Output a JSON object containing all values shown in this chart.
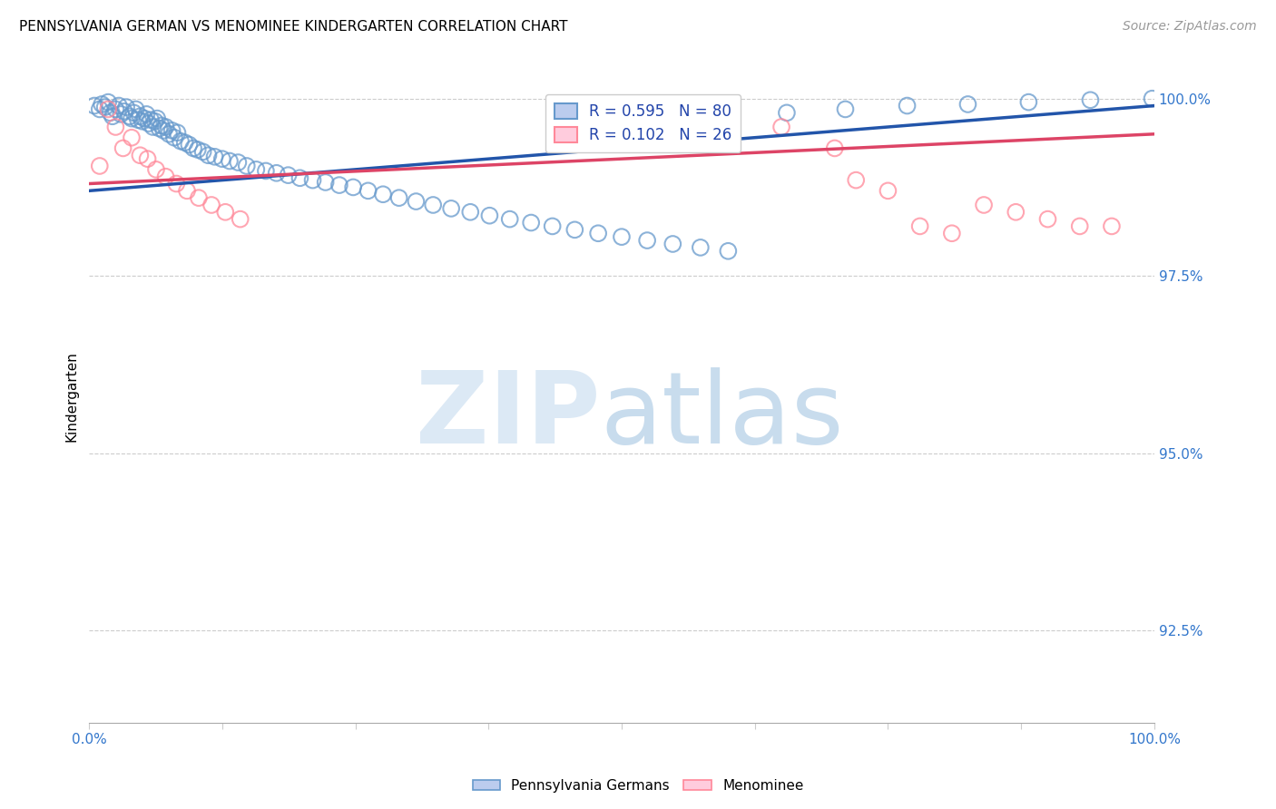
{
  "title": "PENNSYLVANIA GERMAN VS MENOMINEE KINDERGARTEN CORRELATION CHART",
  "source": "Source: ZipAtlas.com",
  "ylabel": "Kindergarten",
  "ytick_labels": [
    "100.0%",
    "97.5%",
    "95.0%",
    "92.5%"
  ],
  "ytick_values": [
    1.0,
    0.975,
    0.95,
    0.925
  ],
  "xlim": [
    0.0,
    1.0
  ],
  "ylim": [
    0.912,
    1.004
  ],
  "legend_blue": "R = 0.595   N = 80",
  "legend_pink": "R = 0.102   N = 26",
  "blue_color": "#6699CC",
  "pink_color": "#FF8899",
  "trendline_blue": "#2255AA",
  "trendline_pink": "#DD4466",
  "blue_scatter_x": [
    0.005,
    0.01,
    0.012,
    0.015,
    0.018,
    0.02,
    0.022,
    0.025,
    0.028,
    0.03,
    0.033,
    0.035,
    0.038,
    0.04,
    0.042,
    0.044,
    0.046,
    0.048,
    0.05,
    0.052,
    0.054,
    0.056,
    0.058,
    0.06,
    0.062,
    0.064,
    0.066,
    0.068,
    0.07,
    0.072,
    0.075,
    0.078,
    0.08,
    0.083,
    0.086,
    0.09,
    0.094,
    0.098,
    0.102,
    0.107,
    0.112,
    0.118,
    0.125,
    0.132,
    0.14,
    0.148,
    0.157,
    0.166,
    0.176,
    0.187,
    0.198,
    0.21,
    0.222,
    0.235,
    0.248,
    0.262,
    0.276,
    0.291,
    0.307,
    0.323,
    0.34,
    0.358,
    0.376,
    0.395,
    0.415,
    0.435,
    0.456,
    0.478,
    0.5,
    0.524,
    0.548,
    0.574,
    0.6,
    0.655,
    0.71,
    0.768,
    0.825,
    0.882,
    0.94,
    0.998
  ],
  "blue_scatter_y": [
    0.999,
    0.9985,
    0.9992,
    0.9988,
    0.9995,
    0.998,
    0.9975,
    0.9985,
    0.999,
    0.9978,
    0.9982,
    0.9988,
    0.9975,
    0.9972,
    0.998,
    0.9985,
    0.997,
    0.9975,
    0.9968,
    0.9972,
    0.9978,
    0.9965,
    0.997,
    0.996,
    0.9968,
    0.9972,
    0.9958,
    0.9962,
    0.9955,
    0.996,
    0.995,
    0.9955,
    0.9945,
    0.9952,
    0.994,
    0.9938,
    0.9935,
    0.993,
    0.9928,
    0.9925,
    0.992,
    0.9918,
    0.9915,
    0.9912,
    0.991,
    0.9905,
    0.99,
    0.9898,
    0.9895,
    0.9892,
    0.9888,
    0.9885,
    0.9882,
    0.9878,
    0.9875,
    0.987,
    0.9865,
    0.986,
    0.9855,
    0.985,
    0.9845,
    0.984,
    0.9835,
    0.983,
    0.9825,
    0.982,
    0.9815,
    0.981,
    0.9805,
    0.98,
    0.9795,
    0.979,
    0.9785,
    0.998,
    0.9985,
    0.999,
    0.9992,
    0.9995,
    0.9998,
    1.0
  ],
  "pink_scatter_x": [
    0.01,
    0.018,
    0.025,
    0.032,
    0.04,
    0.048,
    0.055,
    0.063,
    0.072,
    0.082,
    0.092,
    0.103,
    0.115,
    0.128,
    0.142,
    0.65,
    0.7,
    0.72,
    0.75,
    0.78,
    0.81,
    0.84,
    0.87,
    0.9,
    0.93,
    0.96
  ],
  "pink_scatter_y": [
    0.9905,
    0.9985,
    0.996,
    0.993,
    0.9945,
    0.992,
    0.9915,
    0.99,
    0.989,
    0.988,
    0.987,
    0.986,
    0.985,
    0.984,
    0.983,
    0.996,
    0.993,
    0.9885,
    0.987,
    0.982,
    0.981,
    0.985,
    0.984,
    0.983,
    0.982,
    0.982
  ],
  "blue_trendline_x": [
    0.0,
    1.0
  ],
  "blue_trendline_y": [
    0.987,
    0.999
  ],
  "pink_trendline_x": [
    0.0,
    1.0
  ],
  "pink_trendline_y": [
    0.988,
    0.995
  ]
}
